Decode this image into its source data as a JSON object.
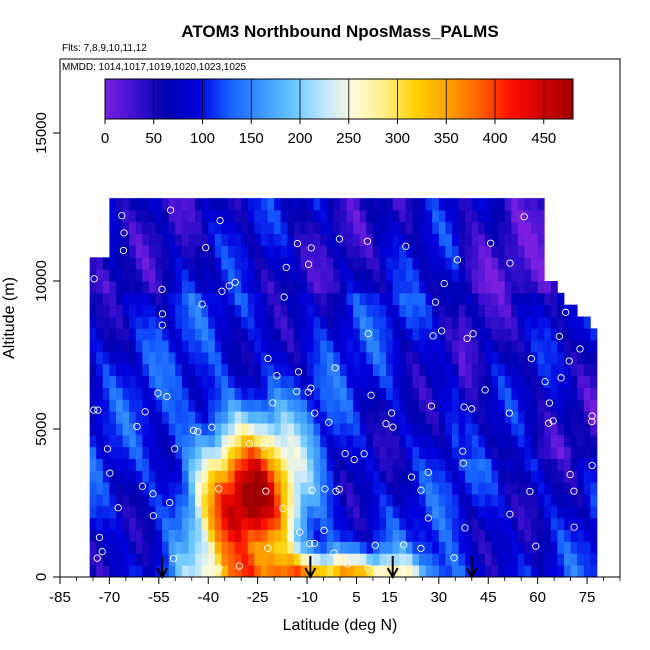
{
  "chart_data": {
    "type": "heatmap",
    "title": "ATOM3 Northbound NposMass_PALMS",
    "subtitle_flights": "Flts: 7,8,9,10,11,12",
    "subtitle_dates": "MMDD: 1014,1017,1019,1020,1023,1025",
    "xlabel": "Latitude (deg N)",
    "ylabel": "Altitude (m)",
    "xlim": [
      -85,
      85
    ],
    "ylim": [
      0,
      17500
    ],
    "x_ticks": [
      -85,
      -70,
      -55,
      -40,
      -25,
      -10,
      5,
      15,
      30,
      45,
      60,
      75
    ],
    "y_ticks": [
      0,
      5000,
      10000,
      15000
    ],
    "colorbar": {
      "min": 0,
      "max": 480,
      "ticks": [
        0,
        50,
        100,
        150,
        200,
        250,
        300,
        350,
        400,
        450
      ],
      "colors": [
        "#7a1fe0",
        "#3a0fd0",
        "#0000b0",
        "#0000e0",
        "#1560ff",
        "#3b95ff",
        "#66c6ff",
        "#bfe6ff",
        "#fffad8",
        "#ffef80",
        "#ffd000",
        "#ffa000",
        "#ff6000",
        "#ff1000",
        "#d00000",
        "#a00000"
      ]
    },
    "arrows_latitude": [
      -54,
      -9,
      16,
      40
    ],
    "grid": false,
    "legend": "top"
  }
}
